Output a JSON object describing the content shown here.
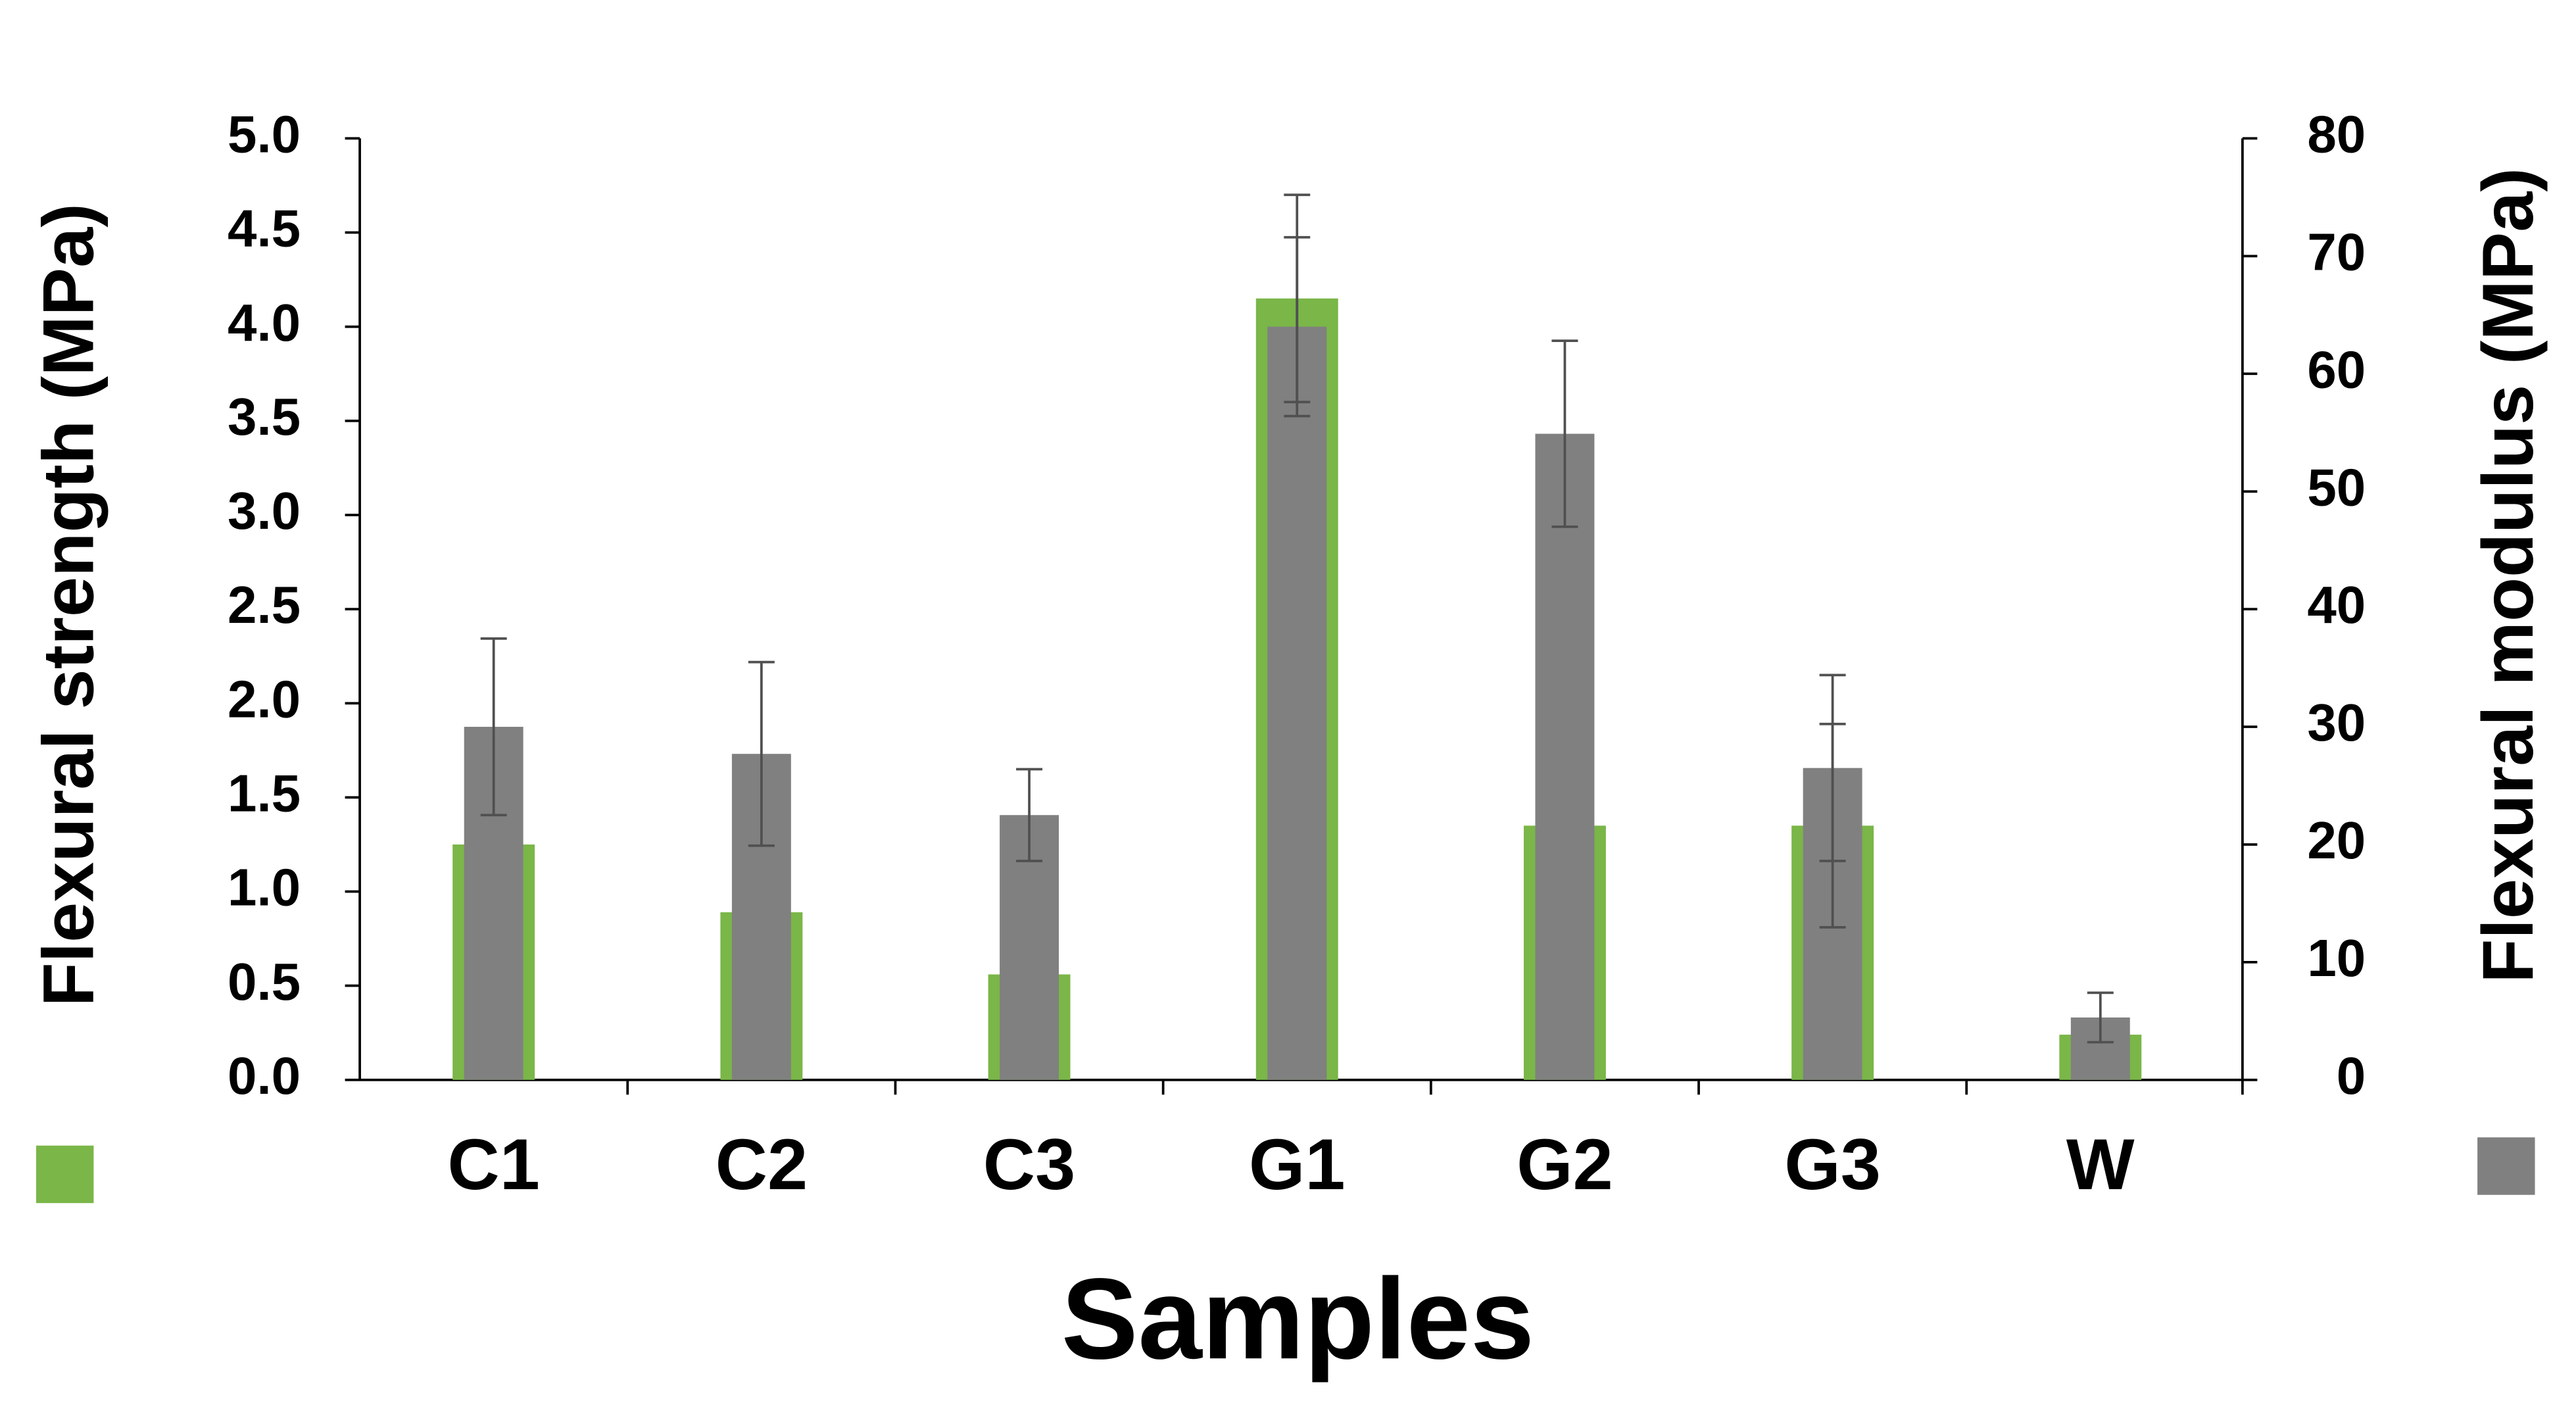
{
  "chart_data": {
    "type": "bar",
    "x_label": "Samples",
    "y_label": "Flexural strength (MPa)",
    "y2_label": "Flexural modulus (MPa)",
    "categories": [
      "C1",
      "C2",
      "C3",
      "G1",
      "G2",
      "G3",
      "W"
    ],
    "series": [
      {
        "color": "#7ab648",
        "values": [
          1.25,
          0.89,
          0.56,
          4.15,
          1.35,
          1.35,
          0.24
        ],
        "errors": [
          null,
          null,
          null,
          0.55,
          null,
          0.54,
          null
        ]
      },
      {
        "color": "#808080",
        "axis": "y2",
        "values": [
          30,
          27.7,
          22.5,
          64,
          54.9,
          26.5,
          5.3
        ],
        "errors": [
          7.5,
          7.8,
          3.9,
          7.6,
          7.9,
          7.9,
          2.1
        ]
      }
    ],
    "ylim": [
      0,
      5
    ],
    "yticks": [
      {
        "value": 0,
        "label": "0.0"
      },
      {
        "value": 0.5,
        "label": "0.5"
      },
      {
        "value": 1,
        "label": "1.0"
      },
      {
        "value": 1.5,
        "label": "1.5"
      },
      {
        "value": 2,
        "label": "2.0"
      },
      {
        "value": 2.5,
        "label": "2.5"
      },
      {
        "value": 3,
        "label": "3.0"
      },
      {
        "value": 3.5,
        "label": "3.5"
      },
      {
        "value": 4,
        "label": "4.0"
      },
      {
        "value": 4.5,
        "label": "4.5"
      },
      {
        "value": 5,
        "label": "5.0"
      }
    ],
    "y2lim": [
      0,
      80
    ],
    "y2ticks": [
      0,
      10,
      20,
      30,
      40,
      50,
      60,
      70,
      80
    ],
    "grid": false
  }
}
